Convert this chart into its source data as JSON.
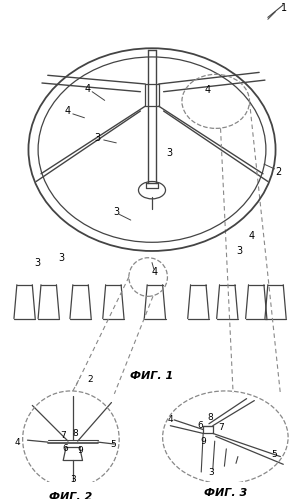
{
  "bg_color": "#ffffff",
  "lc": "#444444",
  "dc": "#888888",
  "fig_width": 3.04,
  "fig_height": 4.99,
  "fig1_label": "ФИГ. 1",
  "fig2_label": "ФИГ. 2",
  "fig3_label": "ФИГ. 3"
}
